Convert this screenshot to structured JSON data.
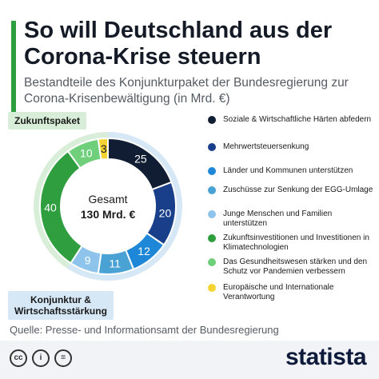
{
  "header": {
    "title": "So will Deutschland aus der Corona-Krise steuern",
    "subtitle": "Bestandteile des Konjunkturpaket der Bundesregierung zur Corona-Krisenbewältigung (in Mrd. €)"
  },
  "tags": {
    "top": "Zukunftspaket",
    "bottom_line1": "Konjunktur &",
    "bottom_line2": "Wirtschaftsstärkung"
  },
  "center": {
    "line1": "Gesamt",
    "line2": "130 Mrd. €"
  },
  "source": "Quelle: Presse- und Informationsamt der Bundesregierung",
  "footer": {
    "license_icons": [
      "cc-icon",
      "by-icon",
      "nd-icon"
    ],
    "brand": "statista"
  },
  "colors": {
    "accent": "#2e9e3f",
    "konjunktur_ring": "#d6e7f5",
    "zukunft_ring": "#d8eed8"
  },
  "chart_data": {
    "type": "pie",
    "variant": "donut",
    "title": "So will Deutschland aus der Corona-Krise steuern",
    "unit": "Mrd. €",
    "total": 130,
    "slices": [
      {
        "label": "Soziale & Wirtschaftliche Härten abfedern",
        "value": 25,
        "color": "#111d33",
        "group": "Konjunktur & Wirtschaftsstärkung"
      },
      {
        "label": "Mehrwertsteuersenkung",
        "value": 20,
        "color": "#1a3f8a",
        "group": "Konjunktur & Wirtschaftsstärkung"
      },
      {
        "label": "Länder und Kommunen unterstützen",
        "value": 12,
        "color": "#1f87d8",
        "group": "Konjunktur & Wirtschaftsstärkung"
      },
      {
        "label": "Zuschüsse zur Senkung der EGG-Umlage",
        "value": 11,
        "color": "#4aa2d4",
        "group": "Konjunktur & Wirtschaftsstärkung"
      },
      {
        "label": "Junge Menschen und Familien unterstützen",
        "value": 9,
        "color": "#8ec3eb",
        "group": "Konjunktur & Wirtschaftsstärkung"
      },
      {
        "label": "Zukunftsinvestitionen und Investitionen in Klimatechnologien",
        "value": 40,
        "color": "#2e9e3f",
        "group": "Zukunftspaket"
      },
      {
        "label": "Das Gesundheitswesen stärken und den Schutz vor Pandemien verbessern",
        "value": 10,
        "color": "#6fcf7a",
        "group": "Zukunftspaket"
      },
      {
        "label": "Europäische und Internationale Verantwortung",
        "value": 3,
        "color": "#f5d431",
        "group": "Zukunftspaket"
      }
    ],
    "legend_placement": "right"
  }
}
